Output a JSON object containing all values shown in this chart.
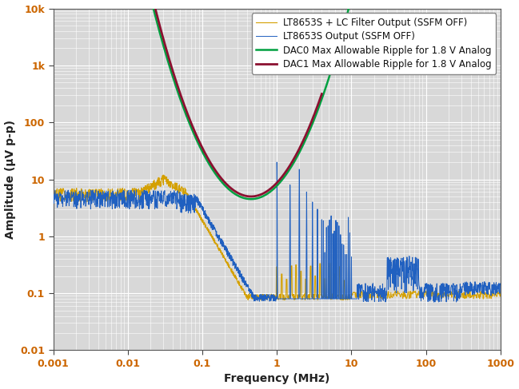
{
  "xlabel": "Frequency (MHz)",
  "ylabel": "Amplitude (μV p-p)",
  "xlim": [
    0.001,
    1000
  ],
  "ylim": [
    0.01,
    10000
  ],
  "background_color": "#ffffff",
  "plot_bg_color": "#d8d8d8",
  "grid_major_color": "#ffffff",
  "grid_minor_color": "#ffffff",
  "legend_labels": [
    "LT8653S Output (SSFM OFF)",
    "LT8653S + LC Filter Output (SSFM OFF)",
    "DAC0 Max Allowable Ripple for 1.8 V Analog",
    "DAC1 Max Allowable Ripple for 1.8 V Analog"
  ],
  "blue_color": "#2060c0",
  "yellow_color": "#d4a000",
  "dac0_color": "#00a040",
  "dac1_color": "#8b1030",
  "tick_label_color": "#cc6600",
  "axis_label_color": "#222222",
  "tick_fontsize": 9,
  "label_fontsize": 10
}
